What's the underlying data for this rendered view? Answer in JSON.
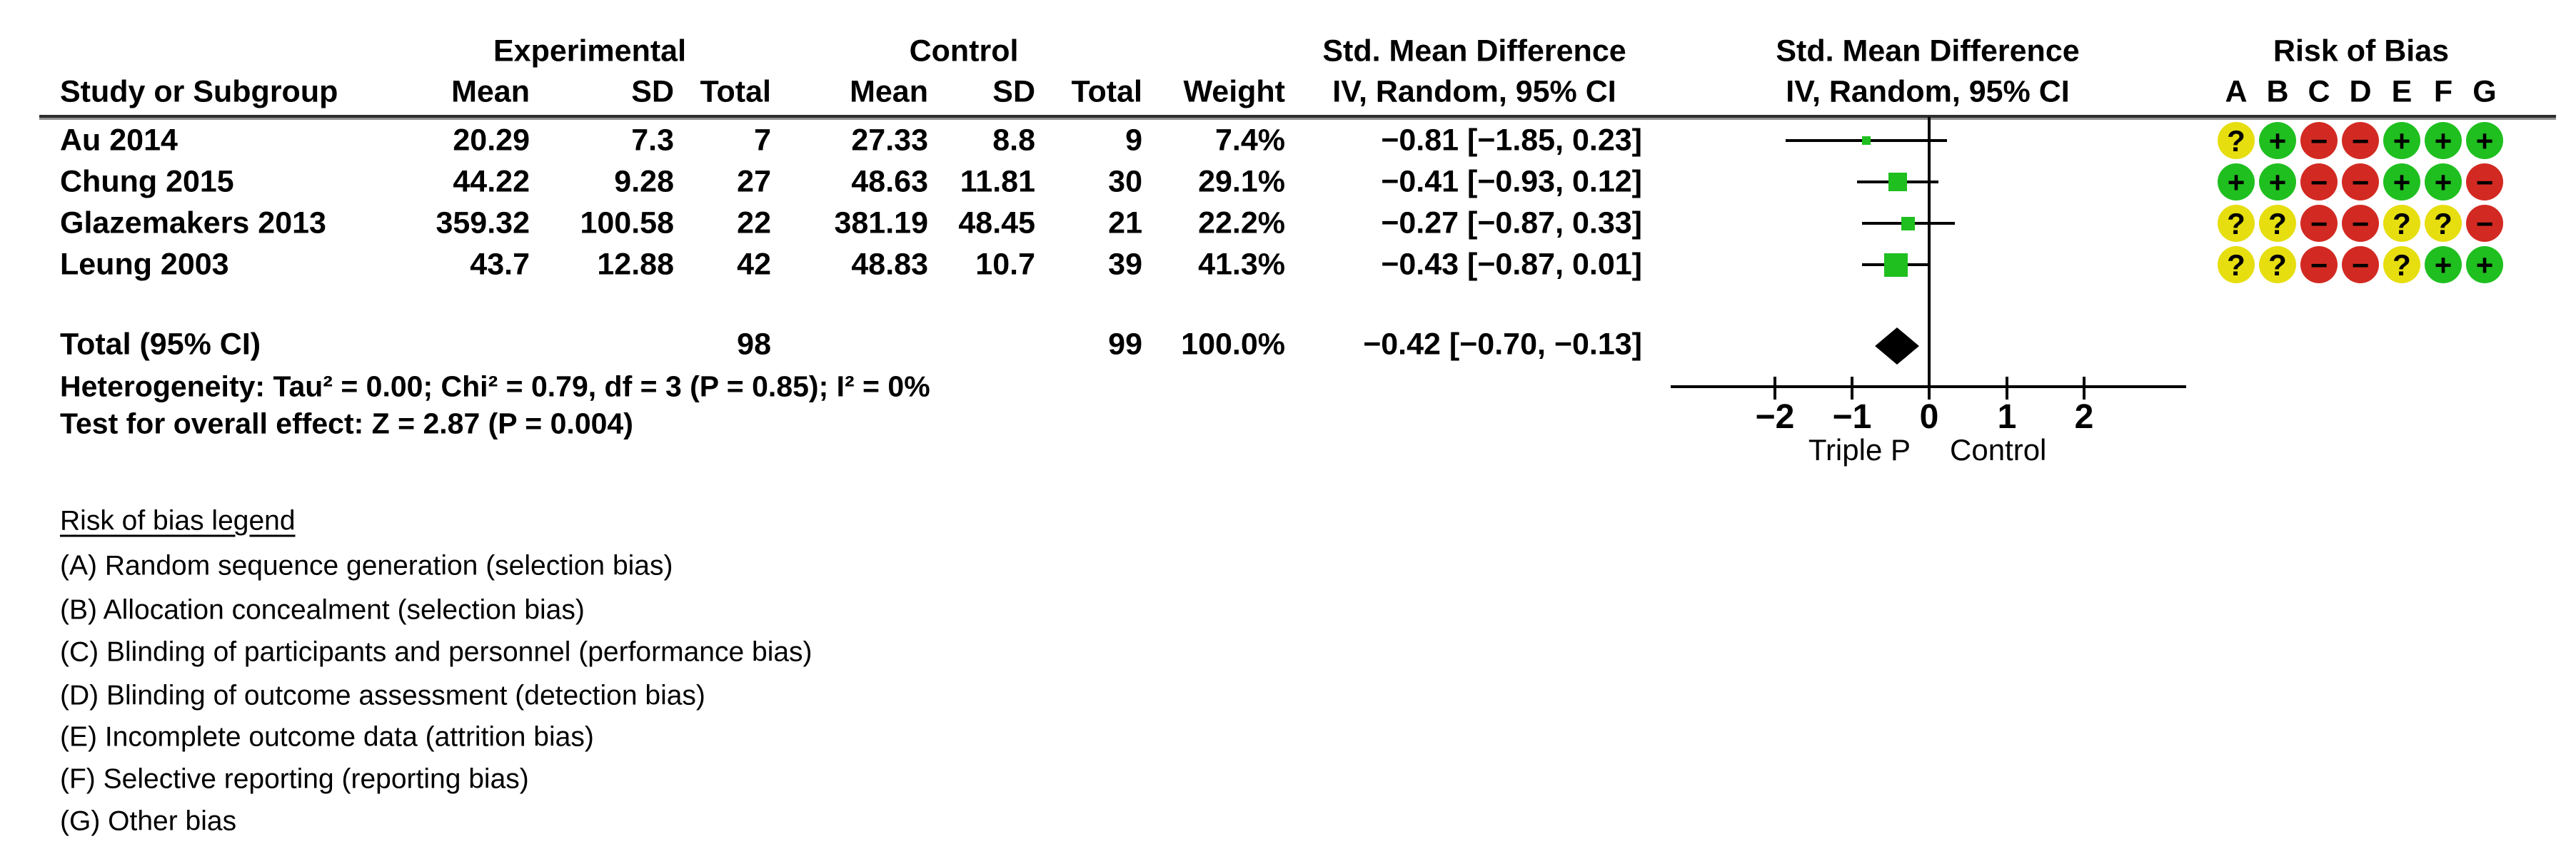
{
  "headers": {
    "study_col": "Study or Subgroup",
    "experimental": "Experimental",
    "control": "Control",
    "smd_table": "Std. Mean Difference",
    "method_table": "IV, Random, 95% CI",
    "smd_plot": "Std. Mean Difference",
    "method_plot": "IV, Random, 95% CI",
    "exp_mean": "Mean",
    "exp_sd": "SD",
    "exp_total": "Total",
    "ctrl_mean": "Mean",
    "ctrl_sd": "SD",
    "ctrl_total": "Total",
    "weight": "Weight",
    "risk_of_bias": "Risk of Bias",
    "rob_letters": [
      "A",
      "B",
      "C",
      "D",
      "E",
      "F",
      "G"
    ]
  },
  "studies": [
    {
      "name": "Au 2014",
      "exp_mean": "20.29",
      "exp_sd": "7.3",
      "exp_total": "7",
      "ctrl_mean": "27.33",
      "ctrl_sd": "8.8",
      "ctrl_total": "9",
      "weight": "7.4%",
      "smd_ci": "−0.81 [−1.85, 0.23]",
      "rob": [
        {
          "symbol": "?",
          "color": "yellow"
        },
        {
          "symbol": "+",
          "color": "green"
        },
        {
          "symbol": "−",
          "color": "red"
        },
        {
          "symbol": "−",
          "color": "red"
        },
        {
          "symbol": "+",
          "color": "green"
        },
        {
          "symbol": "+",
          "color": "green"
        },
        {
          "symbol": "+",
          "color": "green"
        }
      ]
    },
    {
      "name": "Chung 2015",
      "exp_mean": "44.22",
      "exp_sd": "9.28",
      "exp_total": "27",
      "ctrl_mean": "48.63",
      "ctrl_sd": "11.81",
      "ctrl_total": "30",
      "weight": "29.1%",
      "smd_ci": "−0.41 [−0.93, 0.12]",
      "rob": [
        {
          "symbol": "+",
          "color": "green"
        },
        {
          "symbol": "+",
          "color": "green"
        },
        {
          "symbol": "−",
          "color": "red"
        },
        {
          "symbol": "−",
          "color": "red"
        },
        {
          "symbol": "+",
          "color": "green"
        },
        {
          "symbol": "+",
          "color": "green"
        },
        {
          "symbol": "−",
          "color": "red"
        }
      ]
    },
    {
      "name": "Glazemakers 2013",
      "exp_mean": "359.32",
      "exp_sd": "100.58",
      "exp_total": "22",
      "ctrl_mean": "381.19",
      "ctrl_sd": "48.45",
      "ctrl_total": "21",
      "weight": "22.2%",
      "smd_ci": "−0.27 [−0.87, 0.33]",
      "rob": [
        {
          "symbol": "?",
          "color": "yellow"
        },
        {
          "symbol": "?",
          "color": "yellow"
        },
        {
          "symbol": "−",
          "color": "red"
        },
        {
          "symbol": "−",
          "color": "red"
        },
        {
          "symbol": "?",
          "color": "yellow"
        },
        {
          "symbol": "?",
          "color": "yellow"
        },
        {
          "symbol": "−",
          "color": "red"
        }
      ]
    },
    {
      "name": "Leung 2003",
      "exp_mean": "43.7",
      "exp_sd": "12.88",
      "exp_total": "42",
      "ctrl_mean": "48.83",
      "ctrl_sd": "10.7",
      "ctrl_total": "39",
      "weight": "41.3%",
      "smd_ci": "−0.43 [−0.87, 0.01]",
      "rob": [
        {
          "symbol": "?",
          "color": "yellow"
        },
        {
          "symbol": "?",
          "color": "yellow"
        },
        {
          "symbol": "−",
          "color": "red"
        },
        {
          "symbol": "−",
          "color": "red"
        },
        {
          "symbol": "?",
          "color": "yellow"
        },
        {
          "symbol": "+",
          "color": "green"
        },
        {
          "symbol": "+",
          "color": "green"
        }
      ]
    }
  ],
  "total_row": {
    "label": "Total (95% CI)",
    "exp_total": "98",
    "ctrl_total": "99",
    "weight": "100.0%",
    "smd_ci": "−0.42 [−0.70, −0.13]"
  },
  "stats": {
    "heterogeneity": "Heterogeneity: Tau² = 0.00; Chi² = 0.79, df = 3 (P = 0.85); I² = 0%",
    "overall_effect": "Test for overall effect: Z = 2.87 (P = 0.004)"
  },
  "axis": {
    "tick_labels": [
      "−2",
      "−1",
      "0",
      "1",
      "2"
    ],
    "left_label": "Triple P",
    "right_label": "Control"
  },
  "rob_legend": {
    "title": "Risk of bias legend",
    "items": [
      "(A) Random sequence generation (selection bias)",
      "(B) Allocation concealment (selection bias)",
      "(C) Blinding of participants and personnel (performance bias)",
      "(D) Blinding of outcome assessment (detection bias)",
      "(E) Incomplete outcome data (attrition bias)",
      "(F) Selective reporting (reporting bias)",
      "(G) Other bias"
    ]
  },
  "colors": {
    "low_risk_green": "#1fbf1f",
    "unclear_yellow": "#e6de0f",
    "high_risk_red": "#d22a22",
    "marker_green": "#1fbf1f",
    "diamond_black": "#000000"
  },
  "chart_data": {
    "type": "forest",
    "effect_measure": "Std. Mean Difference",
    "model": "IV, Random, 95% CI",
    "x_ticks": [
      -2,
      -1,
      0,
      1,
      2
    ],
    "x_range_shown": [
      -3.35,
      3.3
    ],
    "axis_labels": {
      "left": "Triple P",
      "right": "Control"
    },
    "studies": [
      {
        "name": "Au 2014",
        "smd": -0.81,
        "ci_low": -1.85,
        "ci_high": 0.23,
        "weight_pct": 7.4,
        "exp": {
          "mean": 20.29,
          "sd": 7.3,
          "n": 7
        },
        "ctrl": {
          "mean": 27.33,
          "sd": 8.8,
          "n": 9
        }
      },
      {
        "name": "Chung 2015",
        "smd": -0.41,
        "ci_low": -0.93,
        "ci_high": 0.12,
        "weight_pct": 29.1,
        "exp": {
          "mean": 44.22,
          "sd": 9.28,
          "n": 27
        },
        "ctrl": {
          "mean": 48.63,
          "sd": 11.81,
          "n": 30
        }
      },
      {
        "name": "Glazemakers 2013",
        "smd": -0.27,
        "ci_low": -0.87,
        "ci_high": 0.33,
        "weight_pct": 22.2,
        "exp": {
          "mean": 359.32,
          "sd": 100.58,
          "n": 22
        },
        "ctrl": {
          "mean": 381.19,
          "sd": 48.45,
          "n": 21
        }
      },
      {
        "name": "Leung 2003",
        "smd": -0.43,
        "ci_low": -0.87,
        "ci_high": 0.01,
        "weight_pct": 41.3,
        "exp": {
          "mean": 43.7,
          "sd": 12.88,
          "n": 42
        },
        "ctrl": {
          "mean": 48.83,
          "sd": 10.7,
          "n": 39
        }
      }
    ],
    "total": {
      "name": "Total (95% CI)",
      "smd": -0.42,
      "ci_low": -0.7,
      "ci_high": -0.13,
      "weight_pct": 100.0,
      "exp_n": 98,
      "ctrl_n": 99
    },
    "heterogeneity": {
      "tau2": 0.0,
      "chi2": 0.79,
      "df": 3,
      "p": 0.85,
      "i2_pct": 0
    },
    "overall_effect": {
      "z": 2.87,
      "p": 0.004
    }
  }
}
